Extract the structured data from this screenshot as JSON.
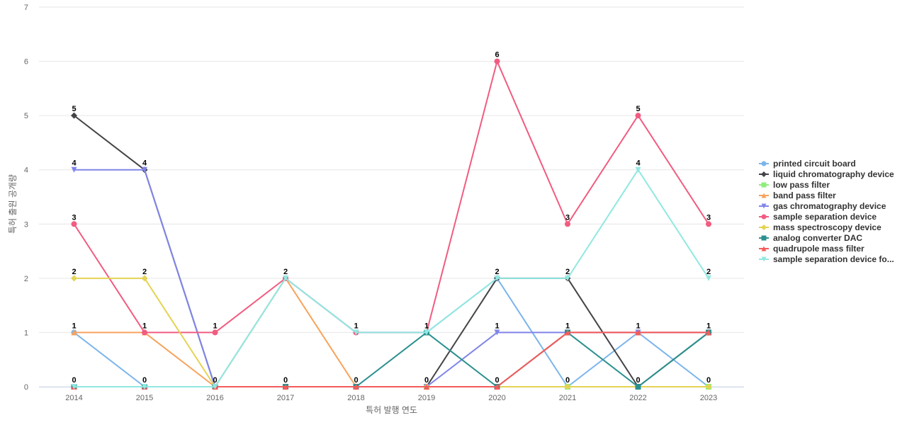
{
  "chart_data": {
    "type": "line",
    "title": "",
    "xlabel": "특허 발행 연도",
    "ylabel": "특허 출원 공개량",
    "ylim": [
      0,
      7
    ],
    "yticks": [
      0,
      1,
      2,
      3,
      4,
      5,
      6,
      7
    ],
    "categories": [
      "2014",
      "2015",
      "2016",
      "2017",
      "2018",
      "2019",
      "2020",
      "2021",
      "2022",
      "2023"
    ],
    "grid": "horizontal",
    "legend_position": "right",
    "series": [
      {
        "name": "printed circuit board",
        "color": "#7cb5ec",
        "marker": "circle",
        "values": [
          1,
          0,
          0,
          2,
          1,
          1,
          2,
          0,
          1,
          0
        ]
      },
      {
        "name": "liquid chromatography device",
        "color": "#434348",
        "marker": "diamond",
        "values": [
          5,
          4,
          0,
          0,
          0,
          0,
          2,
          2,
          0,
          1
        ]
      },
      {
        "name": "low pass filter",
        "color": "#90ed7d",
        "marker": "square",
        "values": [
          0,
          0,
          0,
          0,
          0,
          0,
          0,
          0,
          0,
          0
        ]
      },
      {
        "name": "band pass filter",
        "color": "#f7a35c",
        "marker": "triangle",
        "values": [
          1,
          1,
          0,
          2,
          0,
          0,
          0,
          1,
          1,
          1
        ]
      },
      {
        "name": "gas chromatography device",
        "color": "#8085e9",
        "marker": "triangle-down",
        "values": [
          4,
          4,
          0,
          0,
          0,
          0,
          1,
          1,
          1,
          1
        ]
      },
      {
        "name": "sample separation device",
        "color": "#f15c80",
        "marker": "circle",
        "values": [
          3,
          1,
          1,
          2,
          1,
          1,
          6,
          3,
          5,
          3
        ]
      },
      {
        "name": "mass spectroscopy device",
        "color": "#e4d354",
        "marker": "diamond",
        "values": [
          2,
          2,
          0,
          0,
          0,
          0,
          0,
          0,
          0,
          0
        ]
      },
      {
        "name": "analog converter DAC",
        "color": "#2b908f",
        "marker": "square",
        "values": [
          0,
          0,
          0,
          0,
          0,
          1,
          0,
          1,
          0,
          1
        ]
      },
      {
        "name": "quadrupole mass filter",
        "color": "#f45b5b",
        "marker": "triangle",
        "values": [
          0,
          0,
          0,
          0,
          0,
          0,
          0,
          1,
          1,
          1
        ]
      },
      {
        "name": "sample separation device fo...",
        "color": "#91e8e1",
        "marker": "triangle-down",
        "values": [
          0,
          0,
          0,
          2,
          1,
          1,
          2,
          2,
          4,
          2
        ]
      }
    ],
    "data_labels": [
      {
        "x": "2014",
        "y": 5,
        "text": "5"
      },
      {
        "x": "2014",
        "y": 4,
        "text": "4"
      },
      {
        "x": "2014",
        "y": 3,
        "text": "3"
      },
      {
        "x": "2014",
        "y": 2,
        "text": "2"
      },
      {
        "x": "2014",
        "y": 1,
        "text": "1"
      },
      {
        "x": "2014",
        "y": 0,
        "text": "0"
      },
      {
        "x": "2015",
        "y": 4,
        "text": "4"
      },
      {
        "x": "2015",
        "y": 2,
        "text": "2"
      },
      {
        "x": "2015",
        "y": 1,
        "text": "1"
      },
      {
        "x": "2015",
        "y": 0,
        "text": "0"
      },
      {
        "x": "2016",
        "y": 1,
        "text": "1"
      },
      {
        "x": "2016",
        "y": 0,
        "text": "0"
      },
      {
        "x": "2017",
        "y": 2,
        "text": "2"
      },
      {
        "x": "2017",
        "y": 0,
        "text": "0"
      },
      {
        "x": "2018",
        "y": 1,
        "text": "1"
      },
      {
        "x": "2018",
        "y": 0,
        "text": "0"
      },
      {
        "x": "2019",
        "y": 1,
        "text": "1"
      },
      {
        "x": "2019",
        "y": 0,
        "text": "0"
      },
      {
        "x": "2020",
        "y": 6,
        "text": "6"
      },
      {
        "x": "2020",
        "y": 2,
        "text": "2"
      },
      {
        "x": "2020",
        "y": 1,
        "text": "1"
      },
      {
        "x": "2020",
        "y": 0,
        "text": "0"
      },
      {
        "x": "2021",
        "y": 3,
        "text": "3"
      },
      {
        "x": "2021",
        "y": 2,
        "text": "2"
      },
      {
        "x": "2021",
        "y": 1,
        "text": "1"
      },
      {
        "x": "2021",
        "y": 0,
        "text": "0"
      },
      {
        "x": "2022",
        "y": 5,
        "text": "5"
      },
      {
        "x": "2022",
        "y": 4,
        "text": "4"
      },
      {
        "x": "2022",
        "y": 1,
        "text": "1"
      },
      {
        "x": "2022",
        "y": 0,
        "text": "0"
      },
      {
        "x": "2023",
        "y": 3,
        "text": "3"
      },
      {
        "x": "2023",
        "y": 2,
        "text": "2"
      },
      {
        "x": "2023",
        "y": 1,
        "text": "1"
      },
      {
        "x": "2023",
        "y": 0,
        "text": "0"
      }
    ]
  }
}
